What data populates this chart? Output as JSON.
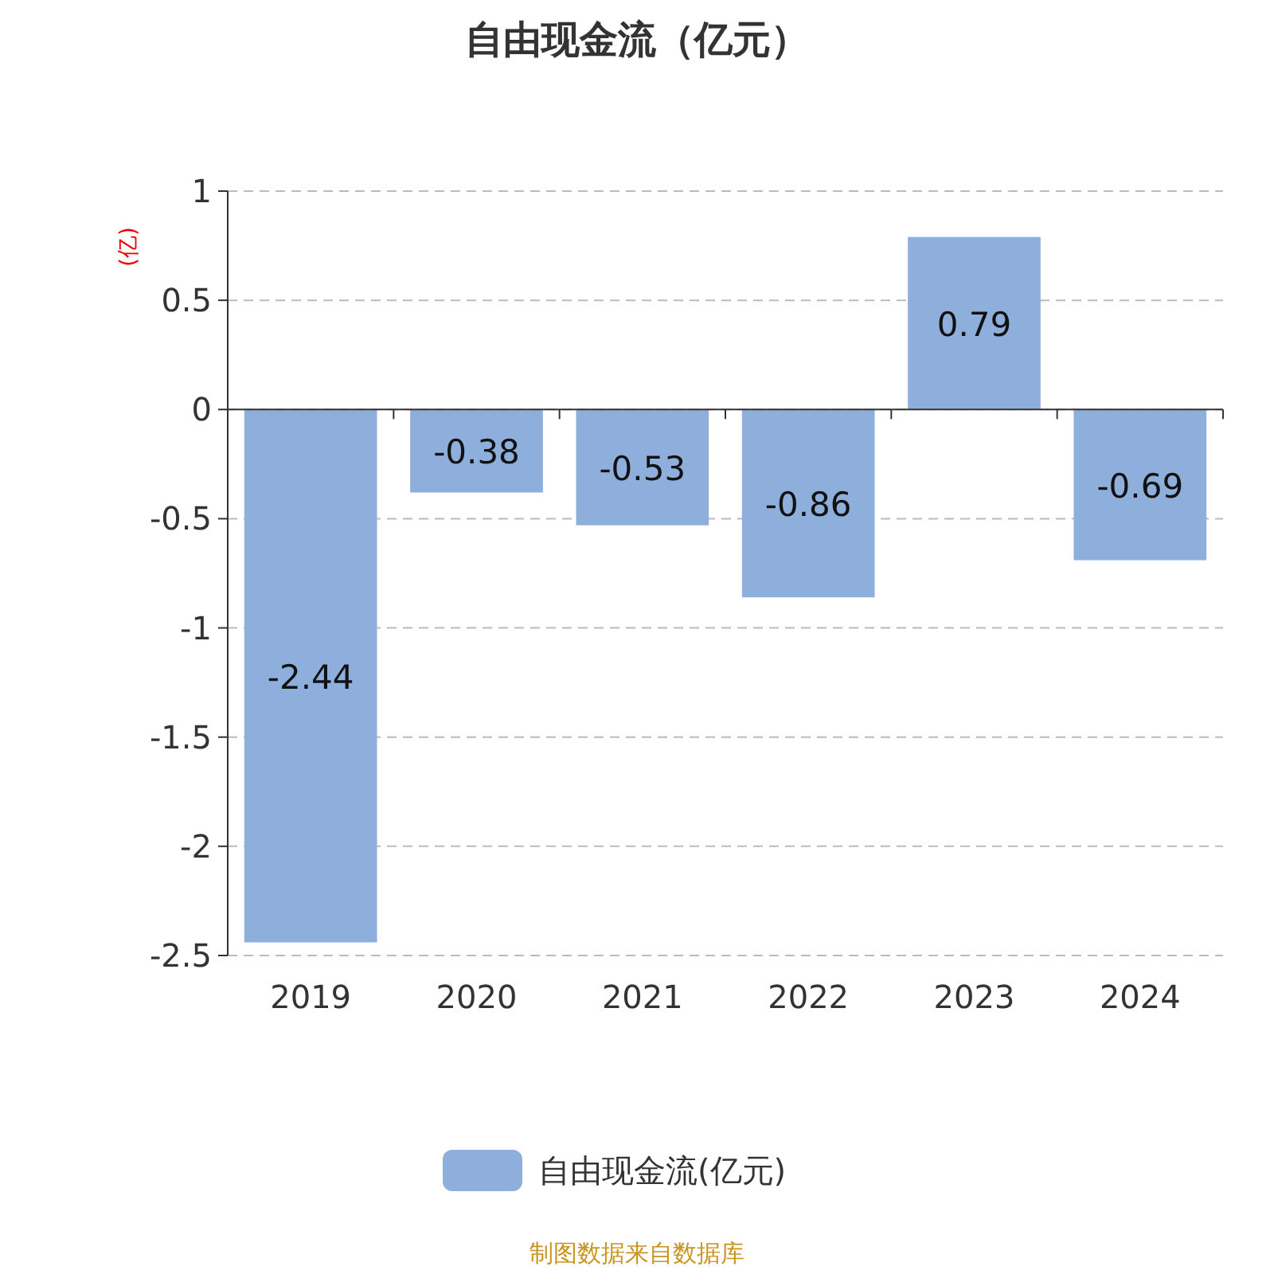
{
  "chart_data": {
    "type": "bar",
    "title": "自由现金流（亿元）",
    "ylabel": "(亿)",
    "categories": [
      "2019",
      "2020",
      "2021",
      "2022",
      "2023",
      "2024"
    ],
    "series": [
      {
        "name": "自由现金流(亿元)",
        "color": "#8eaedb",
        "values": [
          -2.44,
          -0.38,
          -0.53,
          -0.86,
          0.79,
          -0.69
        ]
      }
    ],
    "ylim": [
      -2.5,
      1
    ],
    "yticks": [
      1,
      0.5,
      0,
      -0.5,
      -1,
      -1.5,
      -2,
      -2.5
    ],
    "grid": "y",
    "legend": "bottom",
    "data_labels": true,
    "annotations": [
      "制图数据来自数据库"
    ]
  }
}
